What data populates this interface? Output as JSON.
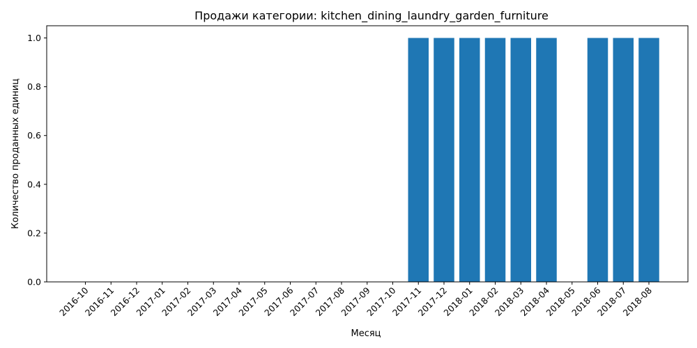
{
  "chart_data": {
    "type": "bar",
    "title": "Продажи категории: kitchen_dining_laundry_garden_furniture",
    "xlabel": "Месяц",
    "ylabel": "Количество проданных единиц",
    "categories": [
      "2016-10",
      "2016-11",
      "2016-12",
      "2017-01",
      "2017-02",
      "2017-03",
      "2017-04",
      "2017-05",
      "2017-06",
      "2017-07",
      "2017-08",
      "2017-09",
      "2017-10",
      "2017-11",
      "2017-12",
      "2018-01",
      "2018-02",
      "2018-03",
      "2018-04",
      "2018-05",
      "2018-06",
      "2018-07",
      "2018-08"
    ],
    "values": [
      0,
      0,
      0,
      0,
      0,
      0,
      0,
      0,
      0,
      0,
      0,
      0,
      0,
      1,
      1,
      1,
      1,
      1,
      1,
      0,
      1,
      1,
      1
    ],
    "ylim": [
      0,
      1.05
    ],
    "yticks": [
      "0.0",
      "0.2",
      "0.4",
      "0.6",
      "0.8",
      "1.0"
    ],
    "grid": false,
    "bar_color": "#1f77b4"
  }
}
